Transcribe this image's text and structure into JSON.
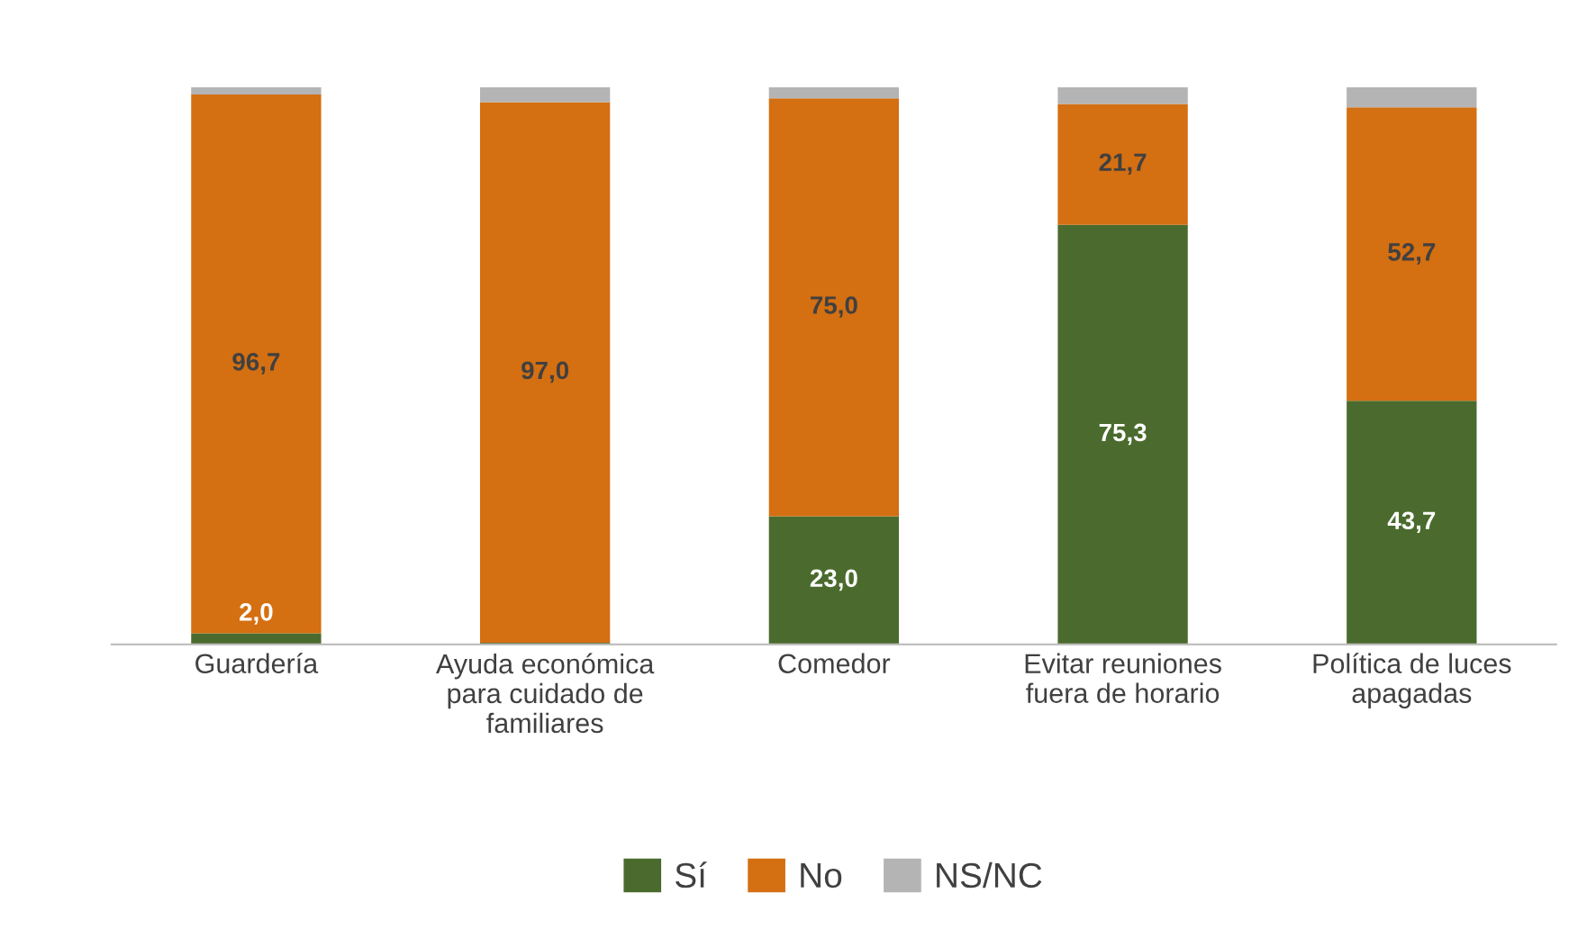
{
  "chart_data": {
    "type": "bar",
    "stacked": true,
    "categories": [
      "Guardería",
      "Ayuda económica\npara cuidado de\nfamiliares",
      "Comedor",
      "Evitar reuniones\nfuera de horario",
      "Política de luces\napagadas"
    ],
    "series": [
      {
        "name": "Sí",
        "color": "#4a6b2d",
        "values": [
          2.0,
          0.3,
          23.0,
          75.3,
          43.7
        ],
        "value_labels": [
          "2,0",
          null,
          "23,0",
          "75,3",
          "43,7"
        ]
      },
      {
        "name": "No",
        "color": "#d46f12",
        "values": [
          96.7,
          97.0,
          75.0,
          21.7,
          52.7
        ],
        "value_labels": [
          "96,7",
          "97,0",
          "75,0",
          "21,7",
          "52,7"
        ]
      },
      {
        "name": "NS/NC",
        "color": "#b4b4b4",
        "values": [
          1.3,
          2.7,
          2.0,
          3.0,
          3.6
        ],
        "value_labels": [
          null,
          null,
          null,
          null,
          null
        ]
      }
    ],
    "ylim": [
      0,
      100
    ],
    "tick_labels": "x",
    "grid": false,
    "legend": "bottom"
  }
}
